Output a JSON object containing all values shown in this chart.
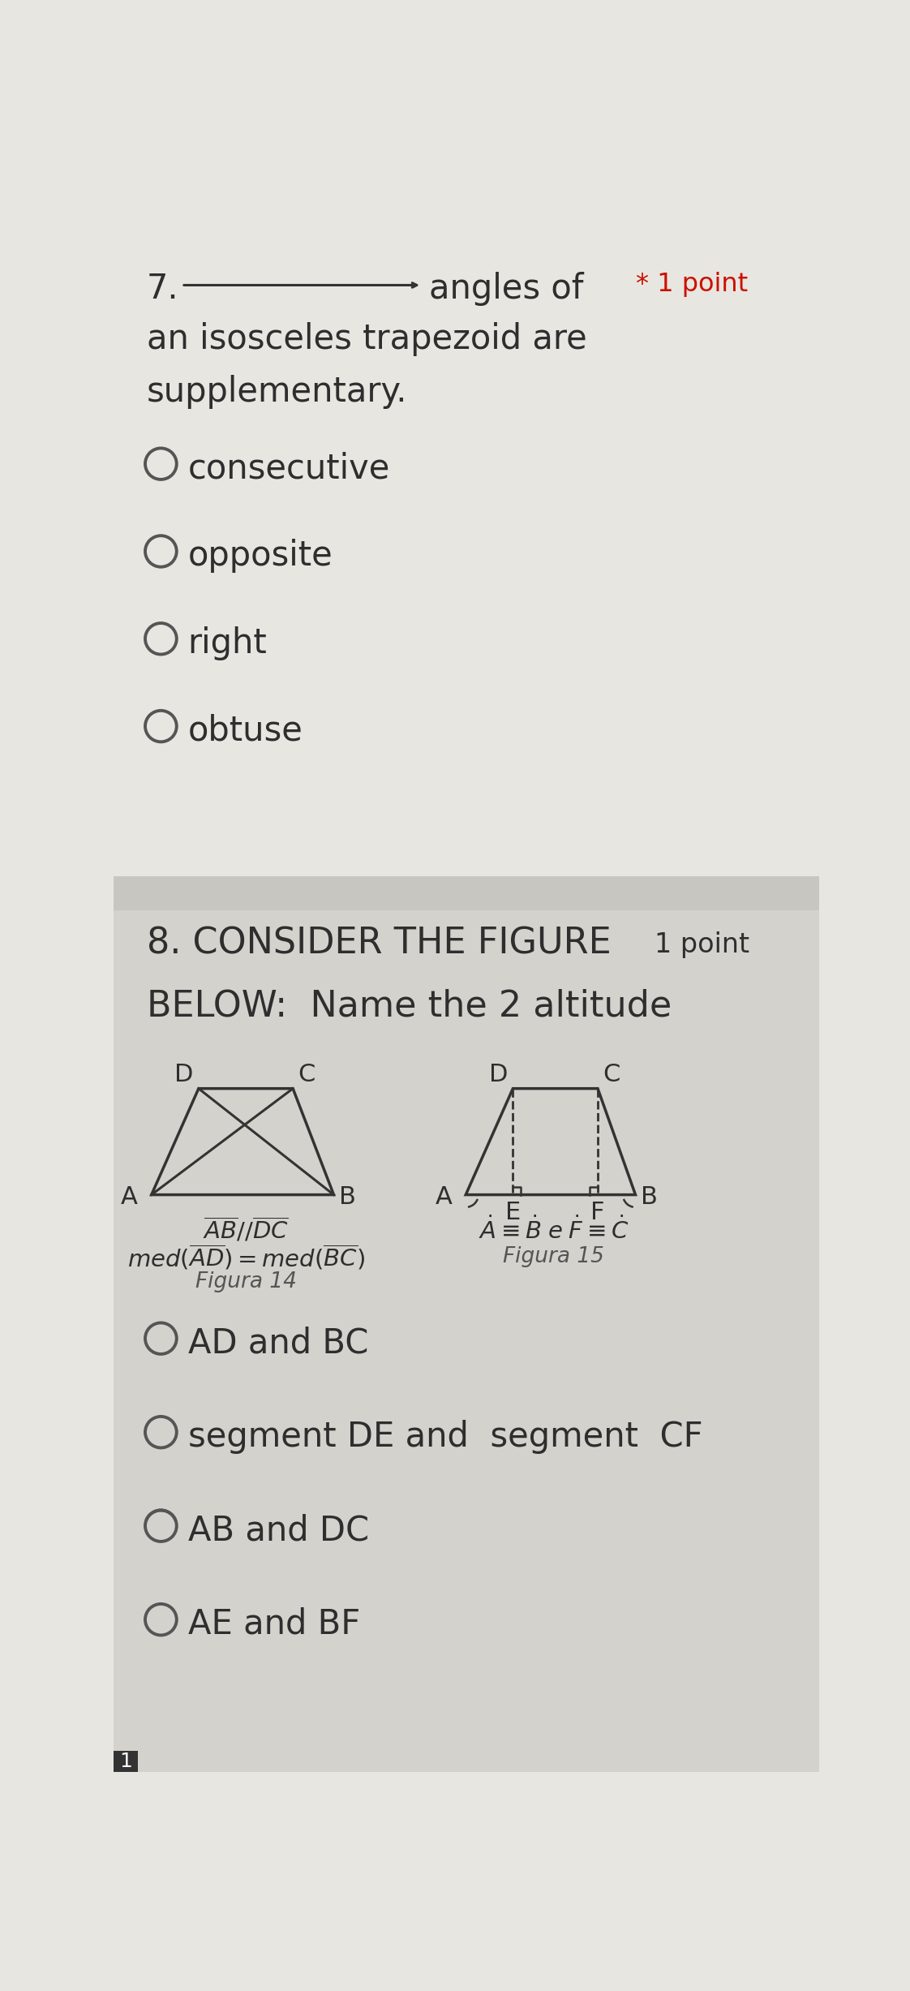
{
  "bg_color_top": "#e8e6e1",
  "bg_color_bottom": "#d4d2cd",
  "sep_color": "#c8c6c1",
  "q7_number": "7.",
  "q7_text_after": "angles of",
  "q7_points_text": "* 1 point",
  "q7_line2": "an isosceles trapezoid are",
  "q7_line3": "supplementary.",
  "q7_options": [
    "consecutive",
    "opposite",
    "right",
    "obtuse"
  ],
  "q8_number": "8. CONSIDER THE FIGURE",
  "q8_points": "1 point",
  "q8_line2": "BELOW:  Name the 2 altitude",
  "fig14_label": "Figura 14",
  "fig15_label": "Figura 15",
  "q8_options": [
    "AD and BC",
    "segment DE and  segment  CF",
    "AB and DC",
    "AE and BF"
  ],
  "text_color": "#2e2e2e",
  "circle_color": "#555555",
  "arrow_color": "#333333",
  "fig_line_color": "#333333"
}
